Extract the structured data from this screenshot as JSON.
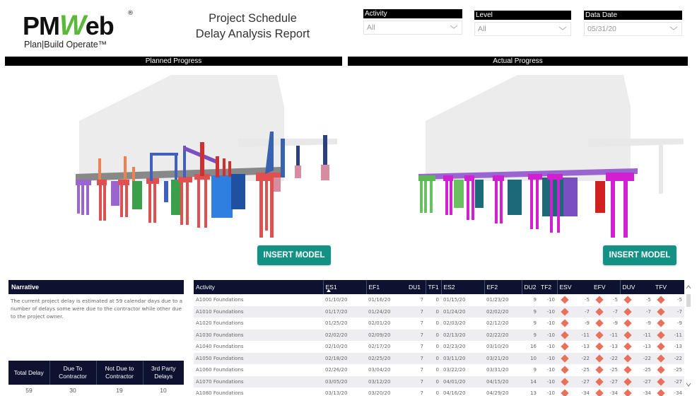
{
  "logo": {
    "brand_part1": "PM",
    "brand_part2": "W",
    "brand_part3": "eb",
    "registered": "®",
    "tagline": "Plan|Build Operate™"
  },
  "report": {
    "title_line1": "Project Schedule",
    "title_line2": "Delay Analysis Report"
  },
  "filters": [
    {
      "label": "Activity",
      "value": "All"
    },
    {
      "label": "Level",
      "value": "All"
    },
    {
      "label": "Data Date",
      "value": "05/31/20"
    }
  ],
  "panels": {
    "planned": {
      "title": "Planned Progress",
      "button": "INSERT MODEL"
    },
    "actual": {
      "title": "Actual Progress",
      "button": "INSERT MODEL"
    }
  },
  "narrative": {
    "title": "Narrative",
    "text": "The current project delay is estimated at 59 calendar days due to a number of delays some were due to the contractor while other due to the project owner."
  },
  "summary": {
    "headers": [
      "Total Delay",
      "Due To Contractor",
      "Not Due to Contractor",
      "3rd Party Delays"
    ],
    "values": [
      "59",
      "30",
      "19",
      "10"
    ]
  },
  "grid": {
    "columns": [
      "Activity",
      "ES1",
      "EF1",
      "DU1",
      "TF1",
      "ES2",
      "EF2",
      "DU2",
      "TF2",
      "ESV",
      "EFV",
      "DUV",
      "TFV"
    ],
    "sorted_column": "ES1",
    "rows": [
      {
        "activity": "A1000 Foundations",
        "es1": "01/10/20",
        "ef1": "01/16/20",
        "du1": "7",
        "tf1": "0",
        "es2": "01/15/20",
        "ef2": "01/23/20",
        "du2": "9",
        "tf2": "-10",
        "esv": "-5",
        "efv": "-5",
        "duv": "-5",
        "tfv": "-5"
      },
      {
        "activity": "A1010 Foundations",
        "es1": "01/17/20",
        "ef1": "01/24/20",
        "du1": "7",
        "tf1": "0",
        "es2": "01/24/20",
        "ef2": "02/02/20",
        "du2": "9",
        "tf2": "-10",
        "esv": "-7",
        "efv": "-7",
        "duv": "-7",
        "tfv": "-7"
      },
      {
        "activity": "A1020 Foundations",
        "es1": "01/25/20",
        "ef1": "02/01/20",
        "du1": "7",
        "tf1": "0",
        "es2": "02/03/20",
        "ef2": "02/12/20",
        "du2": "9",
        "tf2": "-10",
        "esv": "-9",
        "efv": "-9",
        "duv": "-9",
        "tfv": "-9"
      },
      {
        "activity": "A1030 Foundations",
        "es1": "02/02/20",
        "ef1": "02/09/20",
        "du1": "7",
        "tf1": "0",
        "es2": "02/13/20",
        "ef2": "02/22/20",
        "du2": "9",
        "tf2": "-10",
        "esv": "-11",
        "efv": "-11",
        "duv": "-11",
        "tfv": "-11"
      },
      {
        "activity": "A1040 Foundations",
        "es1": "02/10/20",
        "ef1": "02/17/20",
        "du1": "7",
        "tf1": "0",
        "es2": "02/23/20",
        "ef2": "03/10/20",
        "du2": "16",
        "tf2": "-10",
        "esv": "-13",
        "efv": "-13",
        "duv": "-13",
        "tfv": "-13"
      },
      {
        "activity": "A1050 Foundations",
        "es1": "02/18/20",
        "ef1": "02/25/20",
        "du1": "7",
        "tf1": "0",
        "es2": "03/11/20",
        "ef2": "03/21/20",
        "du2": "10",
        "tf2": "-10",
        "esv": "-22",
        "efv": "-22",
        "duv": "-22",
        "tfv": "-22"
      },
      {
        "activity": "A1060 Foundations",
        "es1": "02/26/20",
        "ef1": "03/04/20",
        "du1": "7",
        "tf1": "0",
        "es2": "03/22/20",
        "ef2": "03/31/20",
        "du2": "9",
        "tf2": "-10",
        "esv": "-25",
        "efv": "-25",
        "duv": "-25",
        "tfv": "-25"
      },
      {
        "activity": "A1070 Foundations",
        "es1": "03/05/20",
        "ef1": "03/12/20",
        "du1": "7",
        "tf1": "0",
        "es2": "04/01/20",
        "ef2": "04/15/20",
        "du2": "14",
        "tf2": "-10",
        "esv": "-27",
        "efv": "-27",
        "duv": "-27",
        "tfv": "-27"
      },
      {
        "activity": "A1080 Foundations",
        "es1": "03/13/20",
        "ef1": "03/20/20",
        "du1": "7",
        "tf1": "0",
        "es2": "04/16/20",
        "ef2": "04/29/20",
        "du2": "13",
        "tf2": "-10",
        "esv": "-34",
        "efv": "-34",
        "duv": "-34",
        "tfv": "-34"
      }
    ]
  },
  "colors": {
    "header_bg": "#0c1230",
    "button_teal": "#139184",
    "variance_diamond": "#e8715c",
    "logo_green": "#5cb83a"
  }
}
